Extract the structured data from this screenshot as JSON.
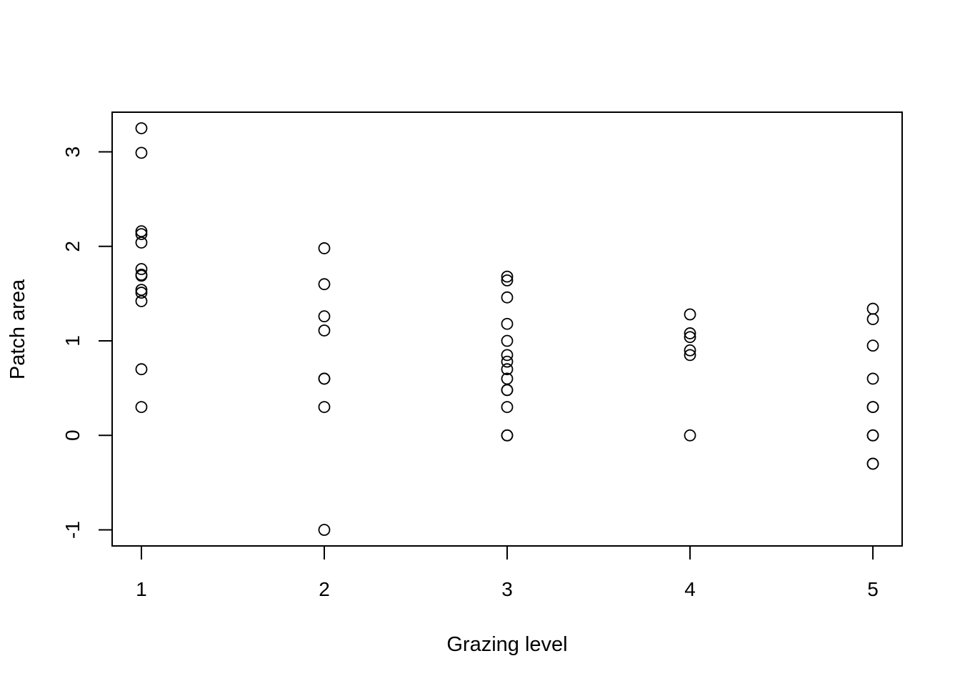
{
  "chart_data": {
    "type": "scatter",
    "title": "",
    "xlabel": "Grazing level",
    "ylabel": "Patch area",
    "xlim": [
      0.84,
      5.16
    ],
    "ylim": [
      -1.17,
      3.42
    ],
    "x_ticks": [
      1,
      2,
      3,
      4,
      5
    ],
    "x_tick_labels": [
      "1",
      "2",
      "3",
      "4",
      "5"
    ],
    "y_ticks": [
      -1,
      0,
      1,
      2,
      3
    ],
    "y_tick_labels": [
      "-1",
      "0",
      "1",
      "2",
      "3"
    ],
    "grid": false,
    "legend": "none",
    "marker": "open-circle",
    "colors": {
      "marker": "#000000",
      "axis": "#000000",
      "background": "#ffffff"
    },
    "points": [
      {
        "x": 1,
        "y": 3.25
      },
      {
        "x": 1,
        "y": 2.99
      },
      {
        "x": 1,
        "y": 2.16
      },
      {
        "x": 1,
        "y": 2.13
      },
      {
        "x": 1,
        "y": 2.04
      },
      {
        "x": 1,
        "y": 1.76
      },
      {
        "x": 1,
        "y": 1.7
      },
      {
        "x": 1,
        "y": 1.69
      },
      {
        "x": 1,
        "y": 1.54
      },
      {
        "x": 1,
        "y": 1.51
      },
      {
        "x": 1,
        "y": 1.42
      },
      {
        "x": 1,
        "y": 0.7
      },
      {
        "x": 1,
        "y": 0.3
      },
      {
        "x": 2,
        "y": 1.98
      },
      {
        "x": 2,
        "y": 1.6
      },
      {
        "x": 2,
        "y": 1.26
      },
      {
        "x": 2,
        "y": 1.11
      },
      {
        "x": 2,
        "y": 0.6
      },
      {
        "x": 2,
        "y": 0.6
      },
      {
        "x": 2,
        "y": 0.3
      },
      {
        "x": 2,
        "y": -1.0
      },
      {
        "x": 3,
        "y": 1.68
      },
      {
        "x": 3,
        "y": 1.64
      },
      {
        "x": 3,
        "y": 1.46
      },
      {
        "x": 3,
        "y": 1.18
      },
      {
        "x": 3,
        "y": 1.0
      },
      {
        "x": 3,
        "y": 0.85
      },
      {
        "x": 3,
        "y": 0.78
      },
      {
        "x": 3,
        "y": 0.7
      },
      {
        "x": 3,
        "y": 0.6
      },
      {
        "x": 3,
        "y": 0.48
      },
      {
        "x": 3,
        "y": 0.48
      },
      {
        "x": 3,
        "y": 0.3
      },
      {
        "x": 3,
        "y": 0.0
      },
      {
        "x": 3,
        "y": 0.0
      },
      {
        "x": 4,
        "y": 1.28
      },
      {
        "x": 4,
        "y": 1.08
      },
      {
        "x": 4,
        "y": 1.04
      },
      {
        "x": 4,
        "y": 0.9
      },
      {
        "x": 4,
        "y": 0.85
      },
      {
        "x": 4,
        "y": 0.0
      },
      {
        "x": 5,
        "y": 1.34
      },
      {
        "x": 5,
        "y": 1.23
      },
      {
        "x": 5,
        "y": 0.95
      },
      {
        "x": 5,
        "y": 0.6
      },
      {
        "x": 5,
        "y": 0.3
      },
      {
        "x": 5,
        "y": 0.3
      },
      {
        "x": 5,
        "y": 0.0
      },
      {
        "x": 5,
        "y": 0.0
      },
      {
        "x": 5,
        "y": -0.3
      },
      {
        "x": 5,
        "y": -0.3
      }
    ]
  }
}
